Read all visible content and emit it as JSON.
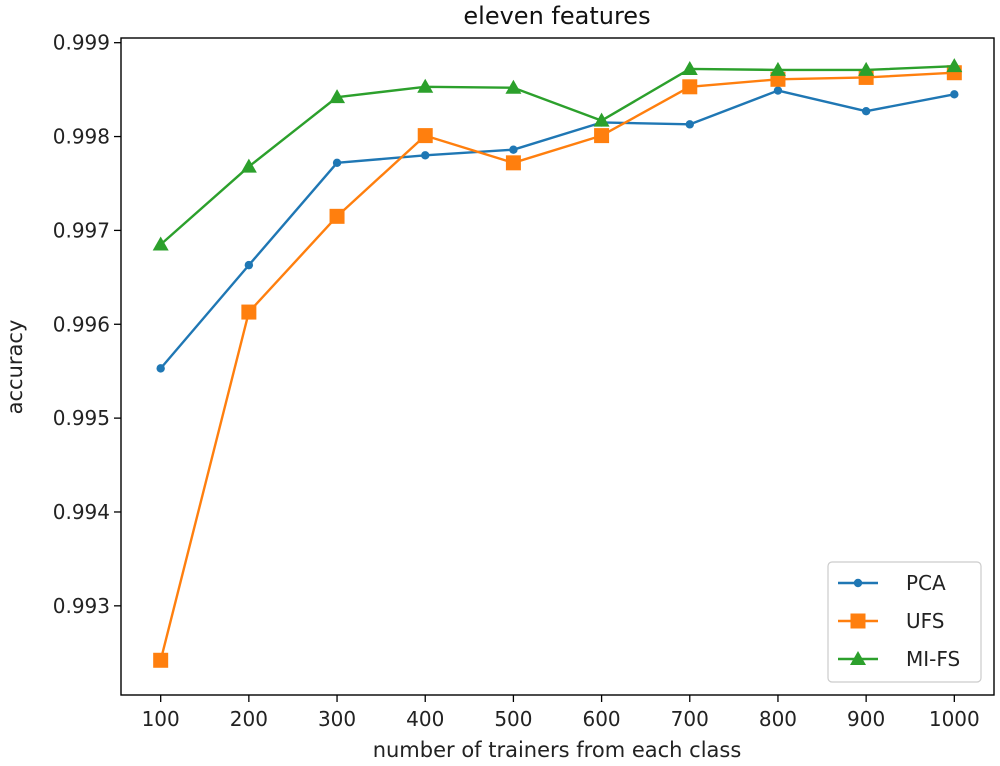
{
  "chart_data": {
    "type": "line",
    "title": "eleven features",
    "xlabel": "number of trainers from each class",
    "ylabel": "accuracy",
    "x": [
      100,
      200,
      300,
      400,
      500,
      600,
      700,
      800,
      900,
      1000
    ],
    "xticks": [
      "100",
      "200",
      "300",
      "400",
      "500",
      "600",
      "700",
      "800",
      "900",
      "1000"
    ],
    "yticks": [
      "0.993",
      "0.994",
      "0.995",
      "0.996",
      "0.997",
      "0.998",
      "0.999"
    ],
    "ylim": [
      0.99205,
      0.99905
    ],
    "xlim": [
      55,
      1045
    ],
    "grid": false,
    "legend_position": "lower-right",
    "series": [
      {
        "name": "PCA",
        "color": "#1f77b4",
        "marker": "circle",
        "values": [
          0.99553,
          0.99663,
          0.99772,
          0.9978,
          0.99786,
          0.99815,
          0.99813,
          0.99849,
          0.99827,
          0.99845
        ]
      },
      {
        "name": "UFS",
        "color": "#ff7f0e",
        "marker": "square",
        "values": [
          0.99242,
          0.99613,
          0.99715,
          0.99801,
          0.99772,
          0.99801,
          0.99853,
          0.99861,
          0.99863,
          0.99868
        ]
      },
      {
        "name": "MI-FS",
        "color": "#2ca02c",
        "marker": "triangle",
        "values": [
          0.99685,
          0.99768,
          0.99842,
          0.99853,
          0.99852,
          0.99817,
          0.99872,
          0.99871,
          0.99871,
          0.99875
        ]
      }
    ]
  }
}
